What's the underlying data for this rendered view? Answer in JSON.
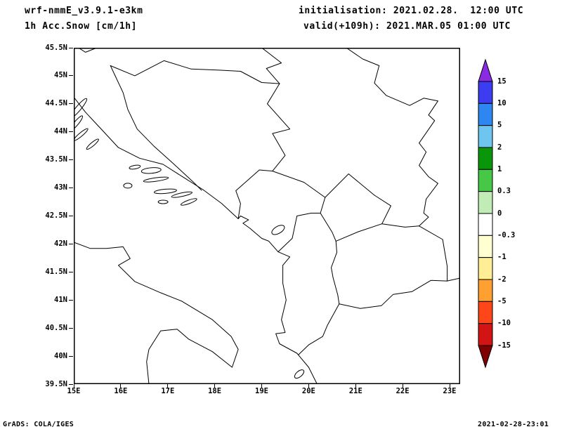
{
  "header": {
    "model": "wrf-nmmE_v3.9.1-e3km",
    "product": "1h Acc.Snow [cm/1h]",
    "init_label": "initialisation: 2021.02.28.  12:00 UTC",
    "valid_label": "valid(+109h): 2021.MAR.05 01:00 UTC"
  },
  "footer": {
    "left": "GrADS: COLA/IGES",
    "right": "2021-02-28-23:01"
  },
  "chart_data": {
    "type": "heatmap",
    "title": "1h Acc.Snow [cm/1h]",
    "model": "wrf-nmmE_v3.9.1-e3km",
    "initialisation": "2021.02.28. 12:00 UTC",
    "valid": "2021.MAR.05 01:00 UTC",
    "forecast_hour": "+109h",
    "map_region": "Adriatic Sea / western Balkans, outline map with coastlines and country borders",
    "xticks": [
      "15E",
      "16E",
      "17E",
      "18E",
      "19E",
      "20E",
      "21E",
      "22E",
      "23E"
    ],
    "yticks": [
      "45.5N",
      "45N",
      "44.5N",
      "44N",
      "43.5N",
      "43N",
      "42.5N",
      "42N",
      "41.5N",
      "41N",
      "40.5N",
      "40N",
      "39.5N"
    ],
    "lon_range": [
      15,
      23.2
    ],
    "lat_range": [
      39.5,
      45.5
    ],
    "grid": false,
    "values": "no shaded snow field plotted; 1h accumulated snow is ~0 cm/1h over the whole domain (blank white map)",
    "colorbar": {
      "units": "cm/1h",
      "levels": [
        "15",
        "10",
        "5",
        "2",
        "1",
        "0.3",
        "0",
        "-0.3",
        "-1",
        "-2",
        "-5",
        "-10",
        "-15"
      ],
      "arrow_top_color": "#8A2BE2",
      "arrow_bottom_color": "#7F0000",
      "segment_colors": [
        "#3C3CF0",
        "#2E86F0",
        "#6EC6F0",
        "#0A960A",
        "#46C846",
        "#C2ECB6",
        "#FFFFFF",
        "#FFFFD2",
        "#FFEE96",
        "#FFA030",
        "#FF4619",
        "#D21414"
      ]
    }
  }
}
